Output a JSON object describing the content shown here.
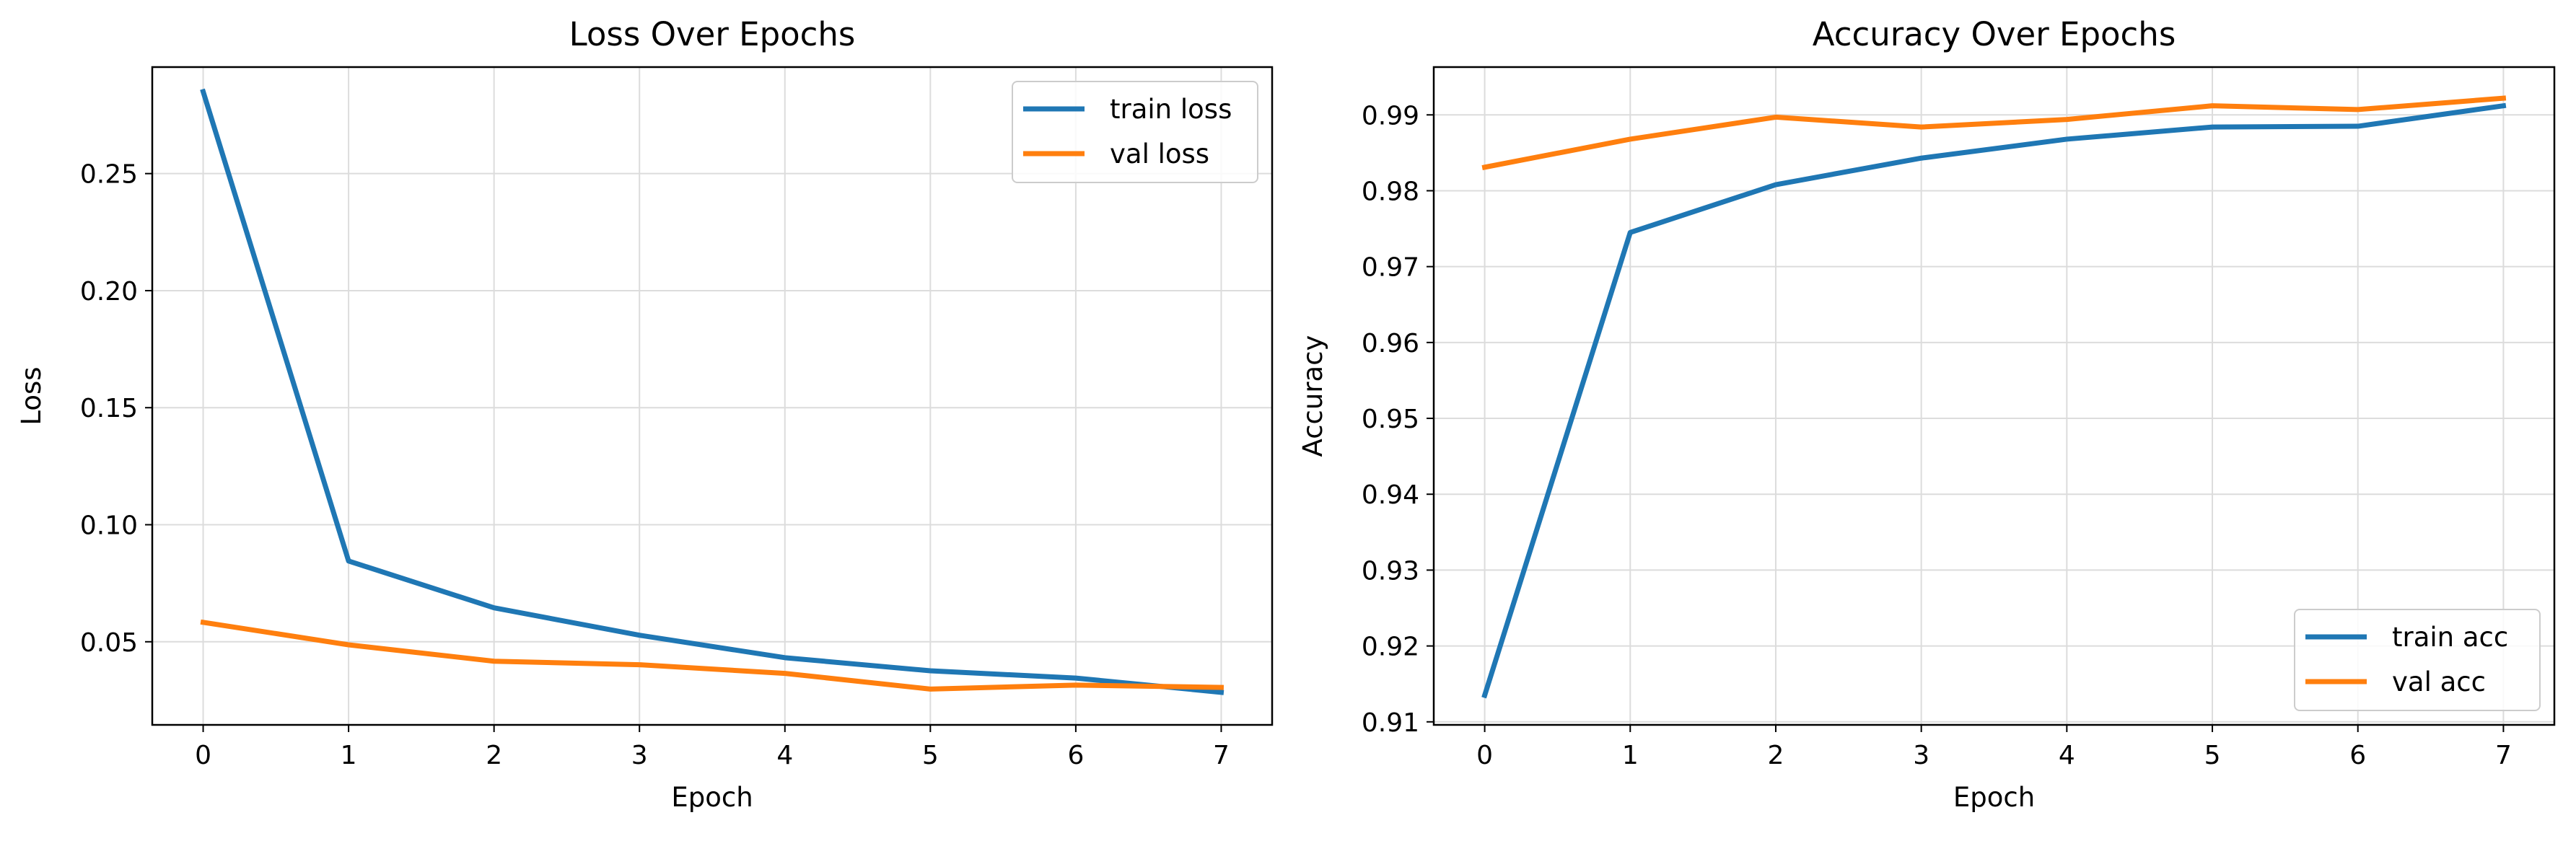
{
  "chart_data": [
    {
      "type": "line",
      "title": "Loss Over Epochs",
      "xlabel": "Epoch",
      "ylabel": "Loss",
      "x": [
        0,
        1,
        2,
        3,
        4,
        5,
        6,
        7
      ],
      "xlim": [
        -0.35,
        7.35
      ],
      "ylim": [
        0.0145,
        0.2955
      ],
      "xticks": [
        0,
        1,
        2,
        3,
        4,
        5,
        6,
        7
      ],
      "yticks": [
        0.05,
        0.1,
        0.15,
        0.2,
        0.25
      ],
      "ytick_labels": [
        "0.05",
        "0.10",
        "0.15",
        "0.20",
        "0.25"
      ],
      "grid": true,
      "legend_loc": "upper right",
      "series": [
        {
          "name": "train loss",
          "color": "#1f77b4",
          "values": [
            0.285,
            0.0845,
            0.0645,
            0.0528,
            0.0432,
            0.0376,
            0.0345,
            0.0284
          ]
        },
        {
          "name": "val loss",
          "color": "#ff7f0e",
          "values": [
            0.0583,
            0.0487,
            0.0417,
            0.0402,
            0.0365,
            0.0298,
            0.0315,
            0.0305
          ]
        }
      ]
    },
    {
      "type": "line",
      "title": "Accuracy Over Epochs",
      "xlabel": "Epoch",
      "ylabel": "Accuracy",
      "x": [
        0,
        1,
        2,
        3,
        4,
        5,
        6,
        7
      ],
      "xlim": [
        -0.35,
        7.35
      ],
      "ylim": [
        0.9096,
        0.9963
      ],
      "xticks": [
        0,
        1,
        2,
        3,
        4,
        5,
        6,
        7
      ],
      "yticks": [
        0.91,
        0.92,
        0.93,
        0.94,
        0.95,
        0.96,
        0.97,
        0.98,
        0.99
      ],
      "ytick_labels": [
        "0.91",
        "0.92",
        "0.93",
        "0.94",
        "0.95",
        "0.96",
        "0.97",
        "0.98",
        "0.99"
      ],
      "grid": true,
      "legend_loc": "lower right",
      "series": [
        {
          "name": "train acc",
          "color": "#1f77b4",
          "values": [
            0.9135,
            0.9745,
            0.9808,
            0.9843,
            0.9868,
            0.9884,
            0.9885,
            0.9912
          ]
        },
        {
          "name": "val acc",
          "color": "#ff7f0e",
          "values": [
            0.9831,
            0.9868,
            0.9897,
            0.9884,
            0.9894,
            0.9912,
            0.9907,
            0.9922
          ]
        }
      ]
    }
  ]
}
